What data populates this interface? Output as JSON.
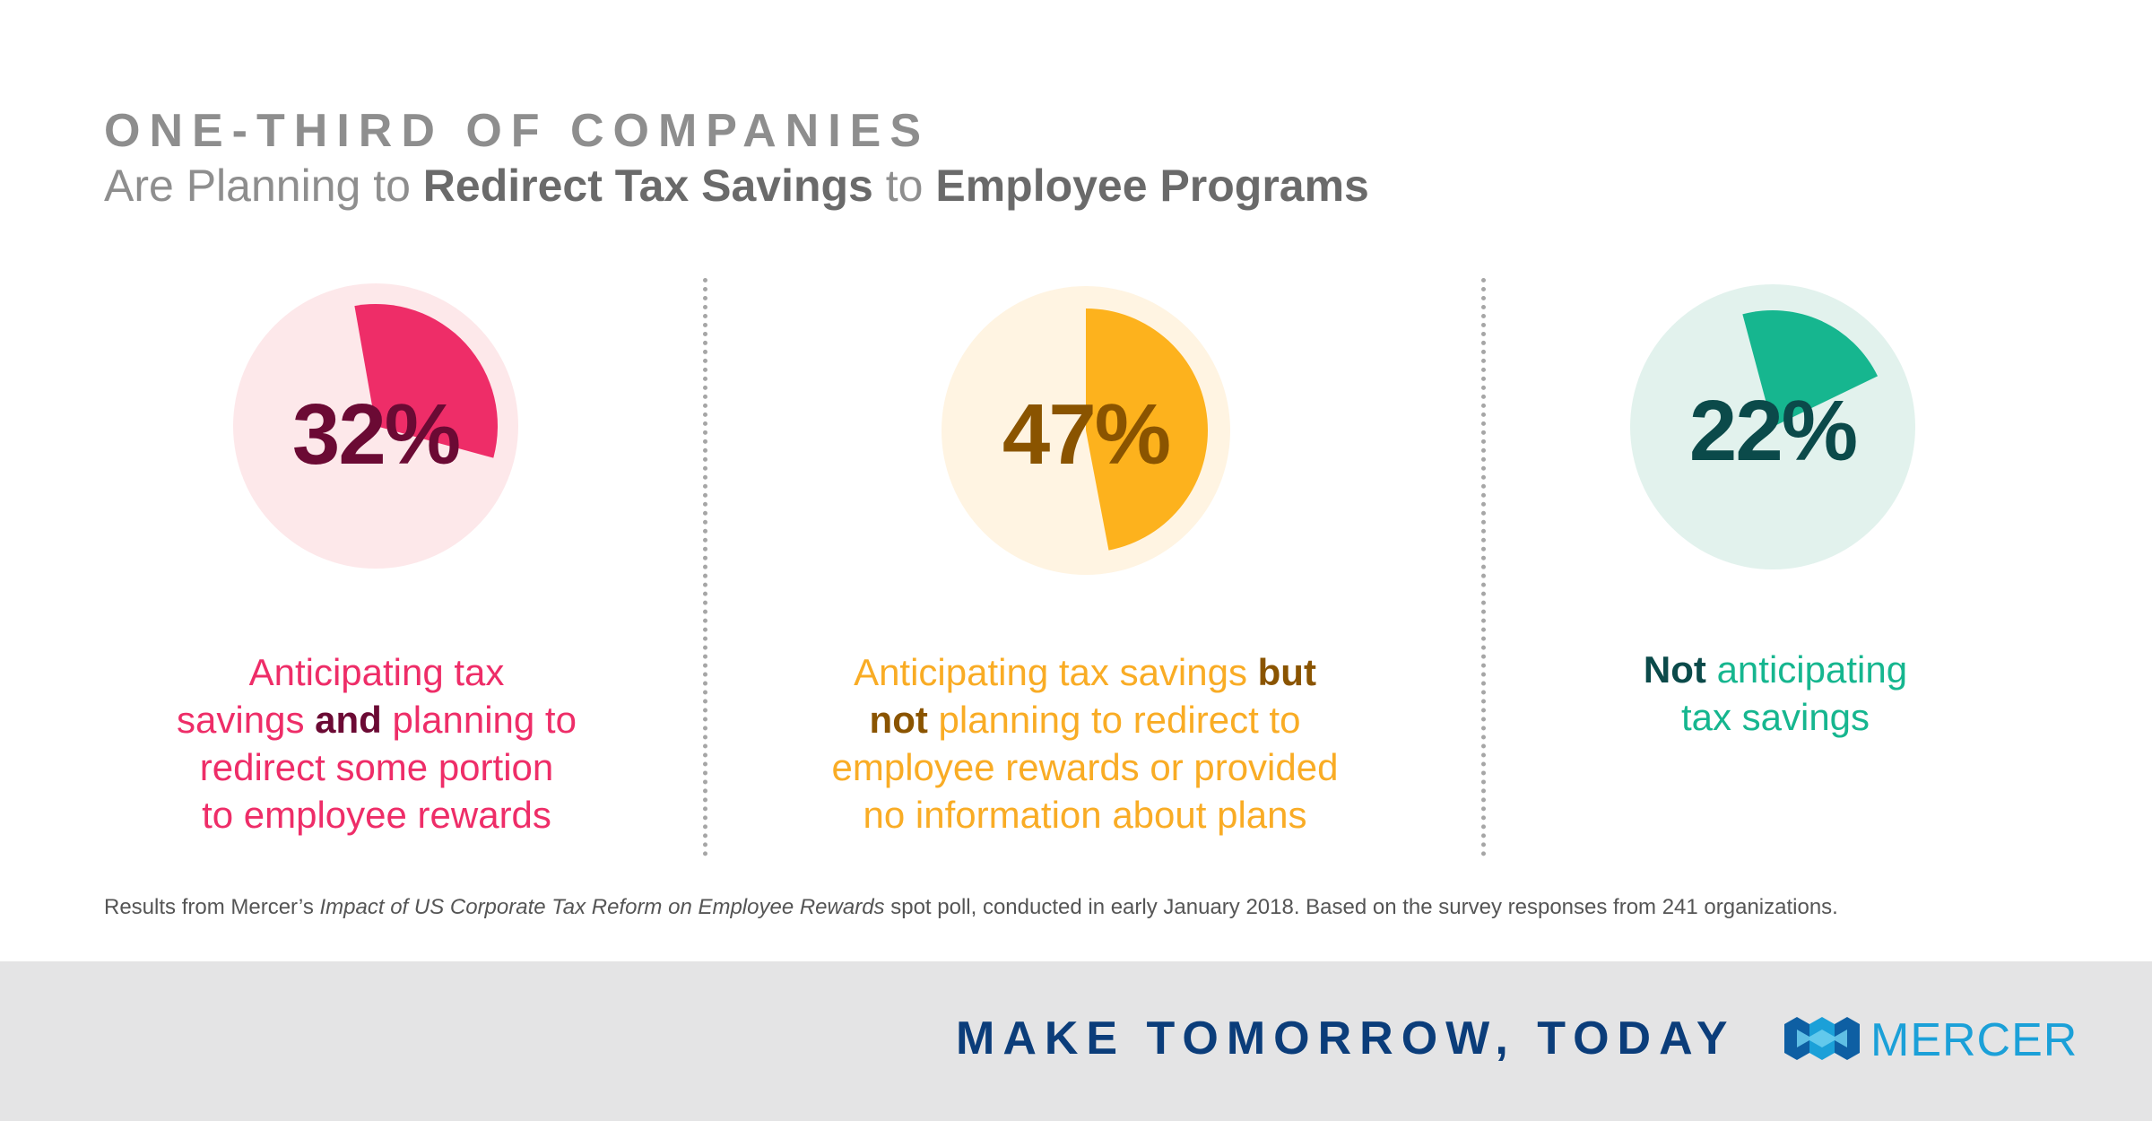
{
  "header": {
    "kicker": "ONE-THIRD OF COMPANIES",
    "subtitle_parts": [
      {
        "text": "Are Planning to ",
        "strong": false
      },
      {
        "text": "Redirect Tax Savings",
        "strong": true
      },
      {
        "text": " to ",
        "strong": false
      },
      {
        "text": "Employee Programs",
        "strong": true
      }
    ]
  },
  "chart_data": {
    "type": "pie",
    "title": "ONE-THIRD OF COMPANIES Are Planning to Redirect Tax Savings to Employee Programs",
    "charts": [
      {
        "value": 32,
        "label": "32%",
        "colors": {
          "fill": "#ee2d68",
          "track": "#fde8ea",
          "number": "#6b0a34",
          "text": "#ee2d68",
          "strong": "#6b0a34"
        },
        "caption": [
          [
            {
              "text": "Anticipating tax",
              "strong": false
            }
          ],
          [
            {
              "text": "savings ",
              "strong": false
            },
            {
              "text": "and",
              "strong": true
            },
            {
              "text": " planning to",
              "strong": false
            }
          ],
          [
            {
              "text": "redirect some portion",
              "strong": false
            }
          ],
          [
            {
              "text": "to employee rewards",
              "strong": false
            }
          ]
        ]
      },
      {
        "value": 47,
        "label": "47%",
        "colors": {
          "fill": "#fdb21d",
          "track": "#fff4e2",
          "number": "#8a5400",
          "text": "#f9ac25",
          "strong": "#8a5400"
        },
        "caption": [
          [
            {
              "text": "Anticipating tax savings ",
              "strong": false
            },
            {
              "text": "but",
              "strong": true
            }
          ],
          [
            {
              "text": "not",
              "strong": true
            },
            {
              "text": " planning to redirect to",
              "strong": false
            }
          ],
          [
            {
              "text": "employee rewards or provided",
              "strong": false
            }
          ],
          [
            {
              "text": "no information about plans",
              "strong": false
            }
          ]
        ]
      },
      {
        "value": 22,
        "label": "22%",
        "colors": {
          "fill": "#16b68f",
          "track": "#e2f2ed",
          "number": "#0b4a4a",
          "text": "#16b68f",
          "strong": "#0b4a4a"
        },
        "caption": [
          [
            {
              "text": "Not",
              "strong": true
            },
            {
              "text": " anticipating",
              "strong": false
            }
          ],
          [
            {
              "text": "tax savings",
              "strong": false
            }
          ]
        ]
      }
    ]
  },
  "footnote": {
    "before": "Results from Mercer’s ",
    "italic": "Impact of US Corporate Tax Reform on Employee Rewards",
    "after": " spot poll, conducted in early January 2018. Based on the survey responses from 241 organizations."
  },
  "footer": {
    "tagline": "MAKE TOMORROW, TODAY",
    "brand": "MERCER",
    "logo_icon": "mercer-logo-icon",
    "colors": {
      "tagline": "#0b3d7a",
      "brand": "#1ba0d8",
      "band": "#e4e4e5"
    }
  }
}
